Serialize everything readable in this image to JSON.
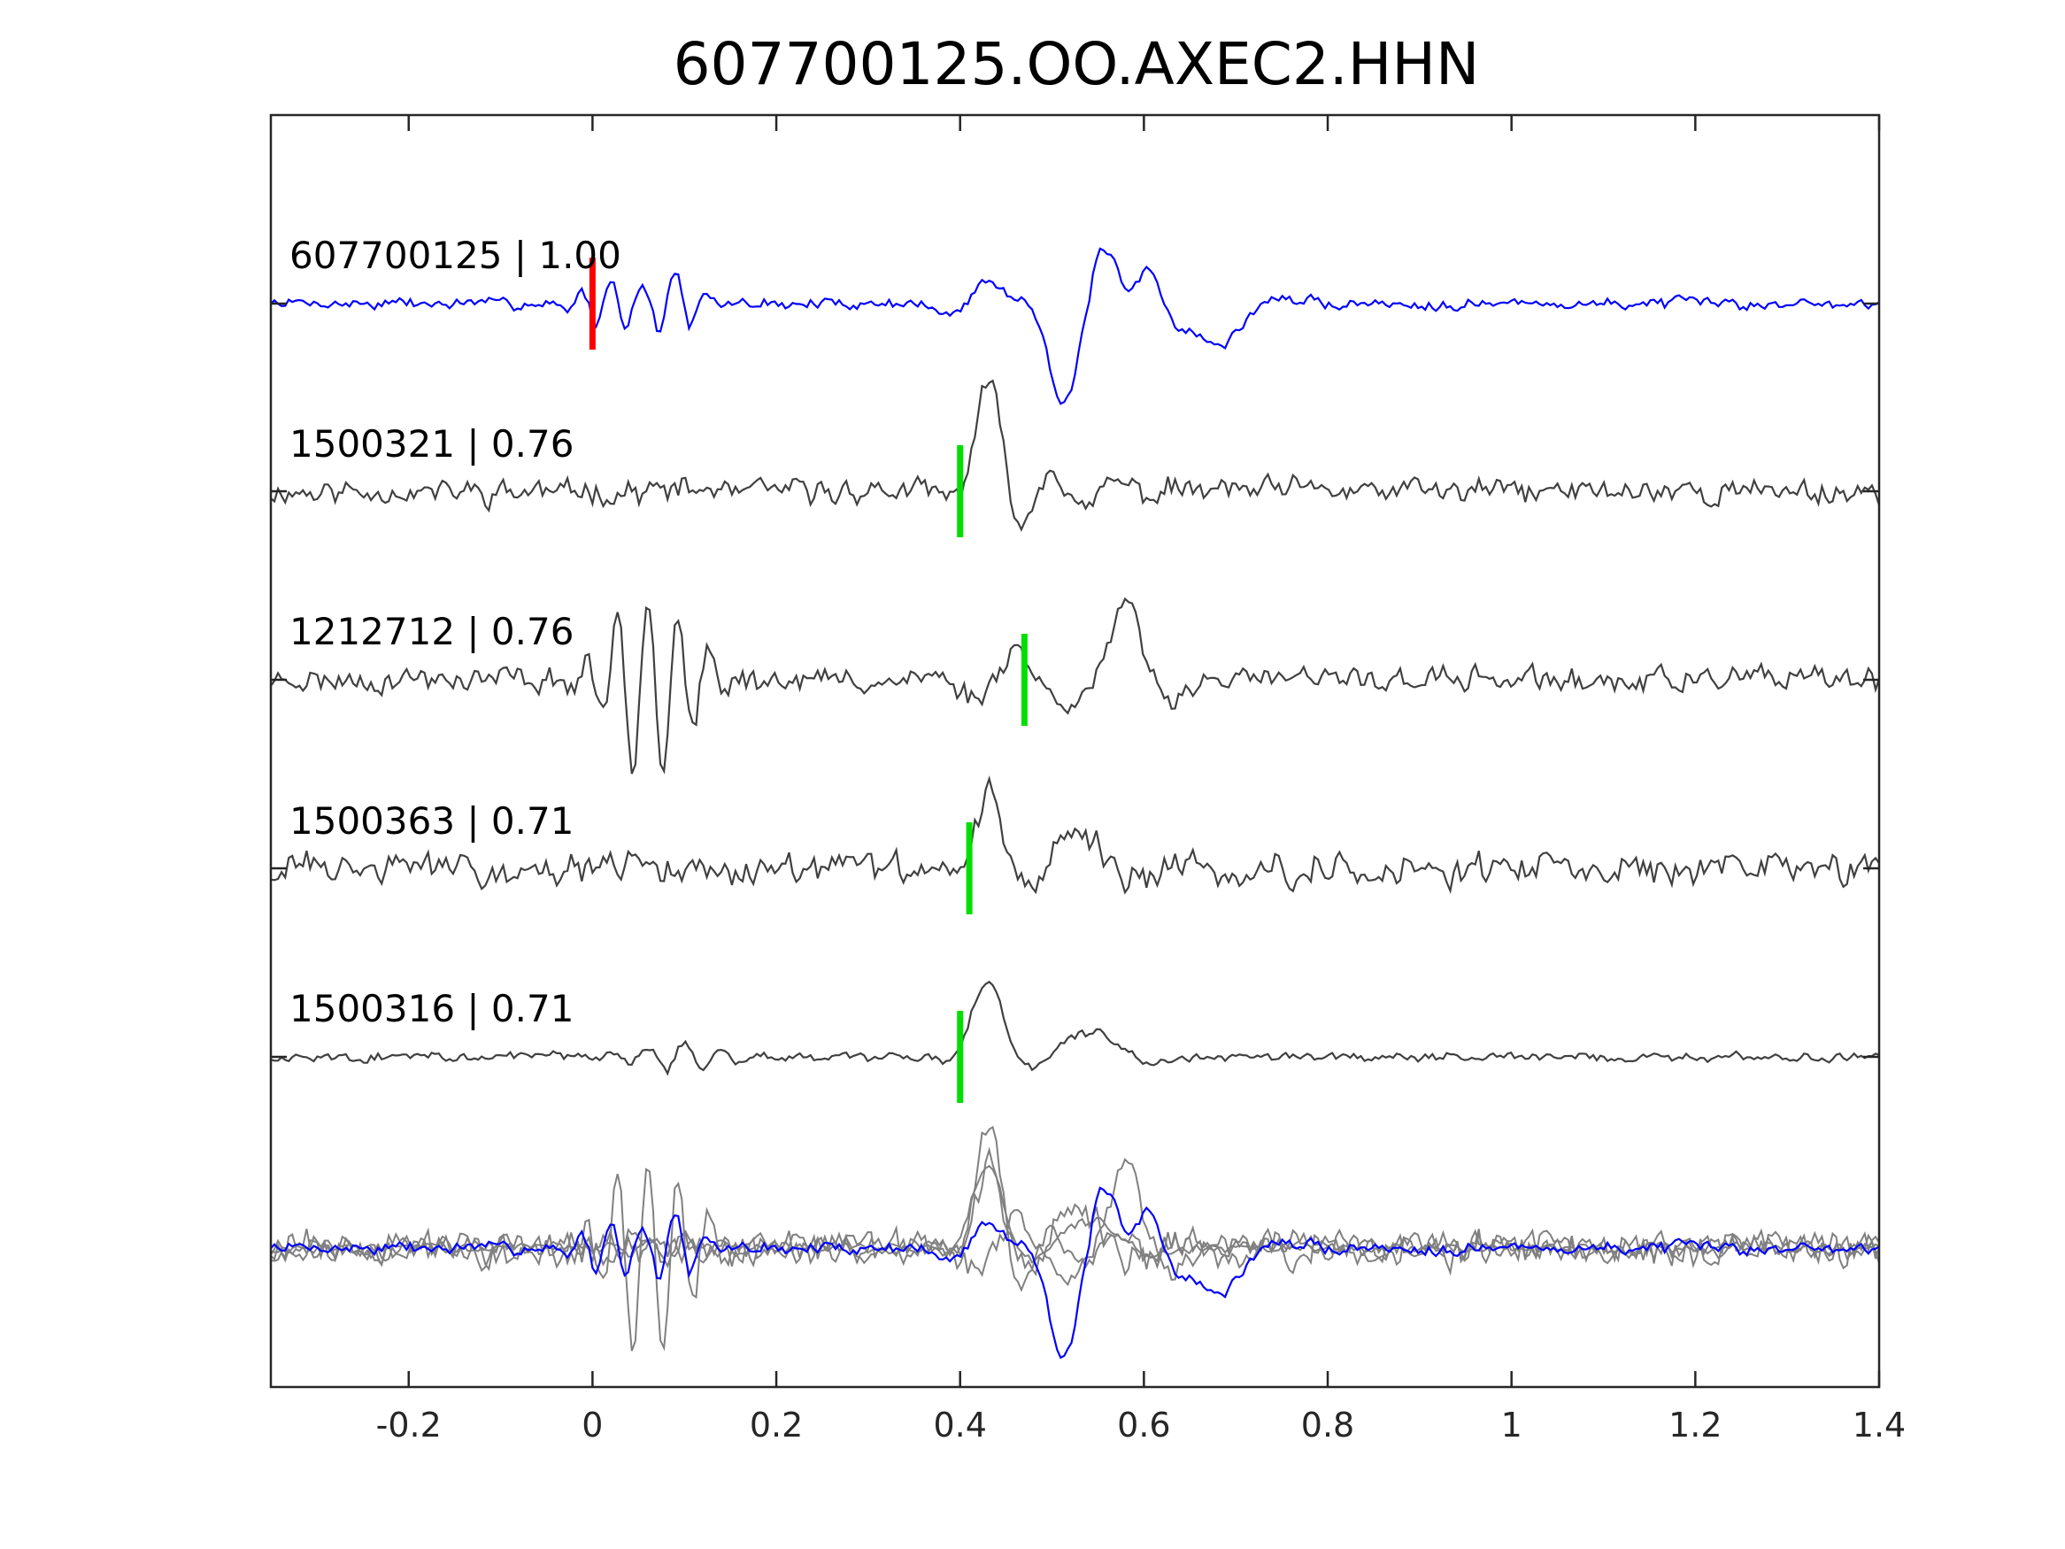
{
  "chart_data": {
    "type": "line",
    "title": "607700125.OO.AXEC2.HHN",
    "xlabel": "",
    "ylabel": "",
    "xlim": [
      -0.35,
      1.4
    ],
    "xticks": [
      -0.2,
      0,
      0.2,
      0.4,
      0.6,
      0.8,
      1,
      1.2,
      1.4
    ],
    "xtick_labels": [
      "-0.2",
      "0",
      "0.2",
      "0.4",
      "0.6",
      "0.8",
      "1",
      "1.2",
      "1.4"
    ],
    "grid": false,
    "series": [
      {
        "name": "607700125 | 1.00",
        "color": "#0000ff",
        "pick_time": 0.0,
        "pick_color": "#ff0000",
        "seed": 7,
        "events": [
          {
            "t": 0.02,
            "a": 0.25,
            "f": 30,
            "w": 0.03
          },
          {
            "t": 0.09,
            "a": 0.35,
            "f": 28,
            "w": 0.02
          },
          {
            "t": 0.43,
            "a": 0.25,
            "f": 10,
            "w": 0.04
          },
          {
            "t": 0.51,
            "a": -0.95,
            "f": 9,
            "w": 0.025
          },
          {
            "t": 0.56,
            "a": 0.65,
            "f": 12,
            "w": 0.03
          },
          {
            "t": 0.6,
            "a": 0.55,
            "f": 11,
            "w": 0.03
          },
          {
            "t": 0.68,
            "a": -0.45,
            "f": 5,
            "w": 0.04
          }
        ],
        "noise": 0.1
      },
      {
        "name": "1500321 | 0.76",
        "color": "#404040",
        "pick_time": 0.4,
        "pick_color": "#00e000",
        "seed": 11,
        "events": [
          {
            "t": 0.43,
            "a": 1.0,
            "f": 8,
            "w": 0.022
          },
          {
            "t": 0.5,
            "a": 0.3,
            "f": 14,
            "w": 0.05
          }
        ],
        "noise": 0.22
      },
      {
        "name": "1212712 | 0.76",
        "color": "#404040",
        "pick_time": 0.47,
        "pick_color": "#00e000",
        "seed": 23,
        "events": [
          {
            "t": 0.06,
            "a": 1.0,
            "f": 30,
            "w": 0.04
          },
          {
            "t": 0.58,
            "a": 0.75,
            "f": 8,
            "w": 0.03
          },
          {
            "t": 0.46,
            "a": 0.35,
            "f": 10,
            "w": 0.04
          }
        ],
        "noise": 0.22
      },
      {
        "name": "1500363 | 0.71",
        "color": "#404040",
        "pick_time": 0.41,
        "pick_color": "#00e000",
        "seed": 31,
        "events": [
          {
            "t": 0.43,
            "a": 0.85,
            "f": 9,
            "w": 0.025
          },
          {
            "t": 0.53,
            "a": 0.4,
            "f": 6,
            "w": 0.04
          }
        ],
        "noise": 0.28
      },
      {
        "name": "1500316 | 0.71",
        "color": "#404040",
        "pick_time": 0.4,
        "pick_color": "#00e000",
        "seed": 43,
        "events": [
          {
            "t": 0.43,
            "a": 0.85,
            "f": 7,
            "w": 0.025
          },
          {
            "t": 0.54,
            "a": 0.25,
            "f": 5,
            "w": 0.05
          },
          {
            "t": 0.1,
            "a": 0.15,
            "f": 25,
            "w": 0.05
          }
        ],
        "noise": 0.08
      }
    ],
    "overlay": {
      "stack_colors": [
        "#0000ff",
        "#808080"
      ]
    }
  }
}
